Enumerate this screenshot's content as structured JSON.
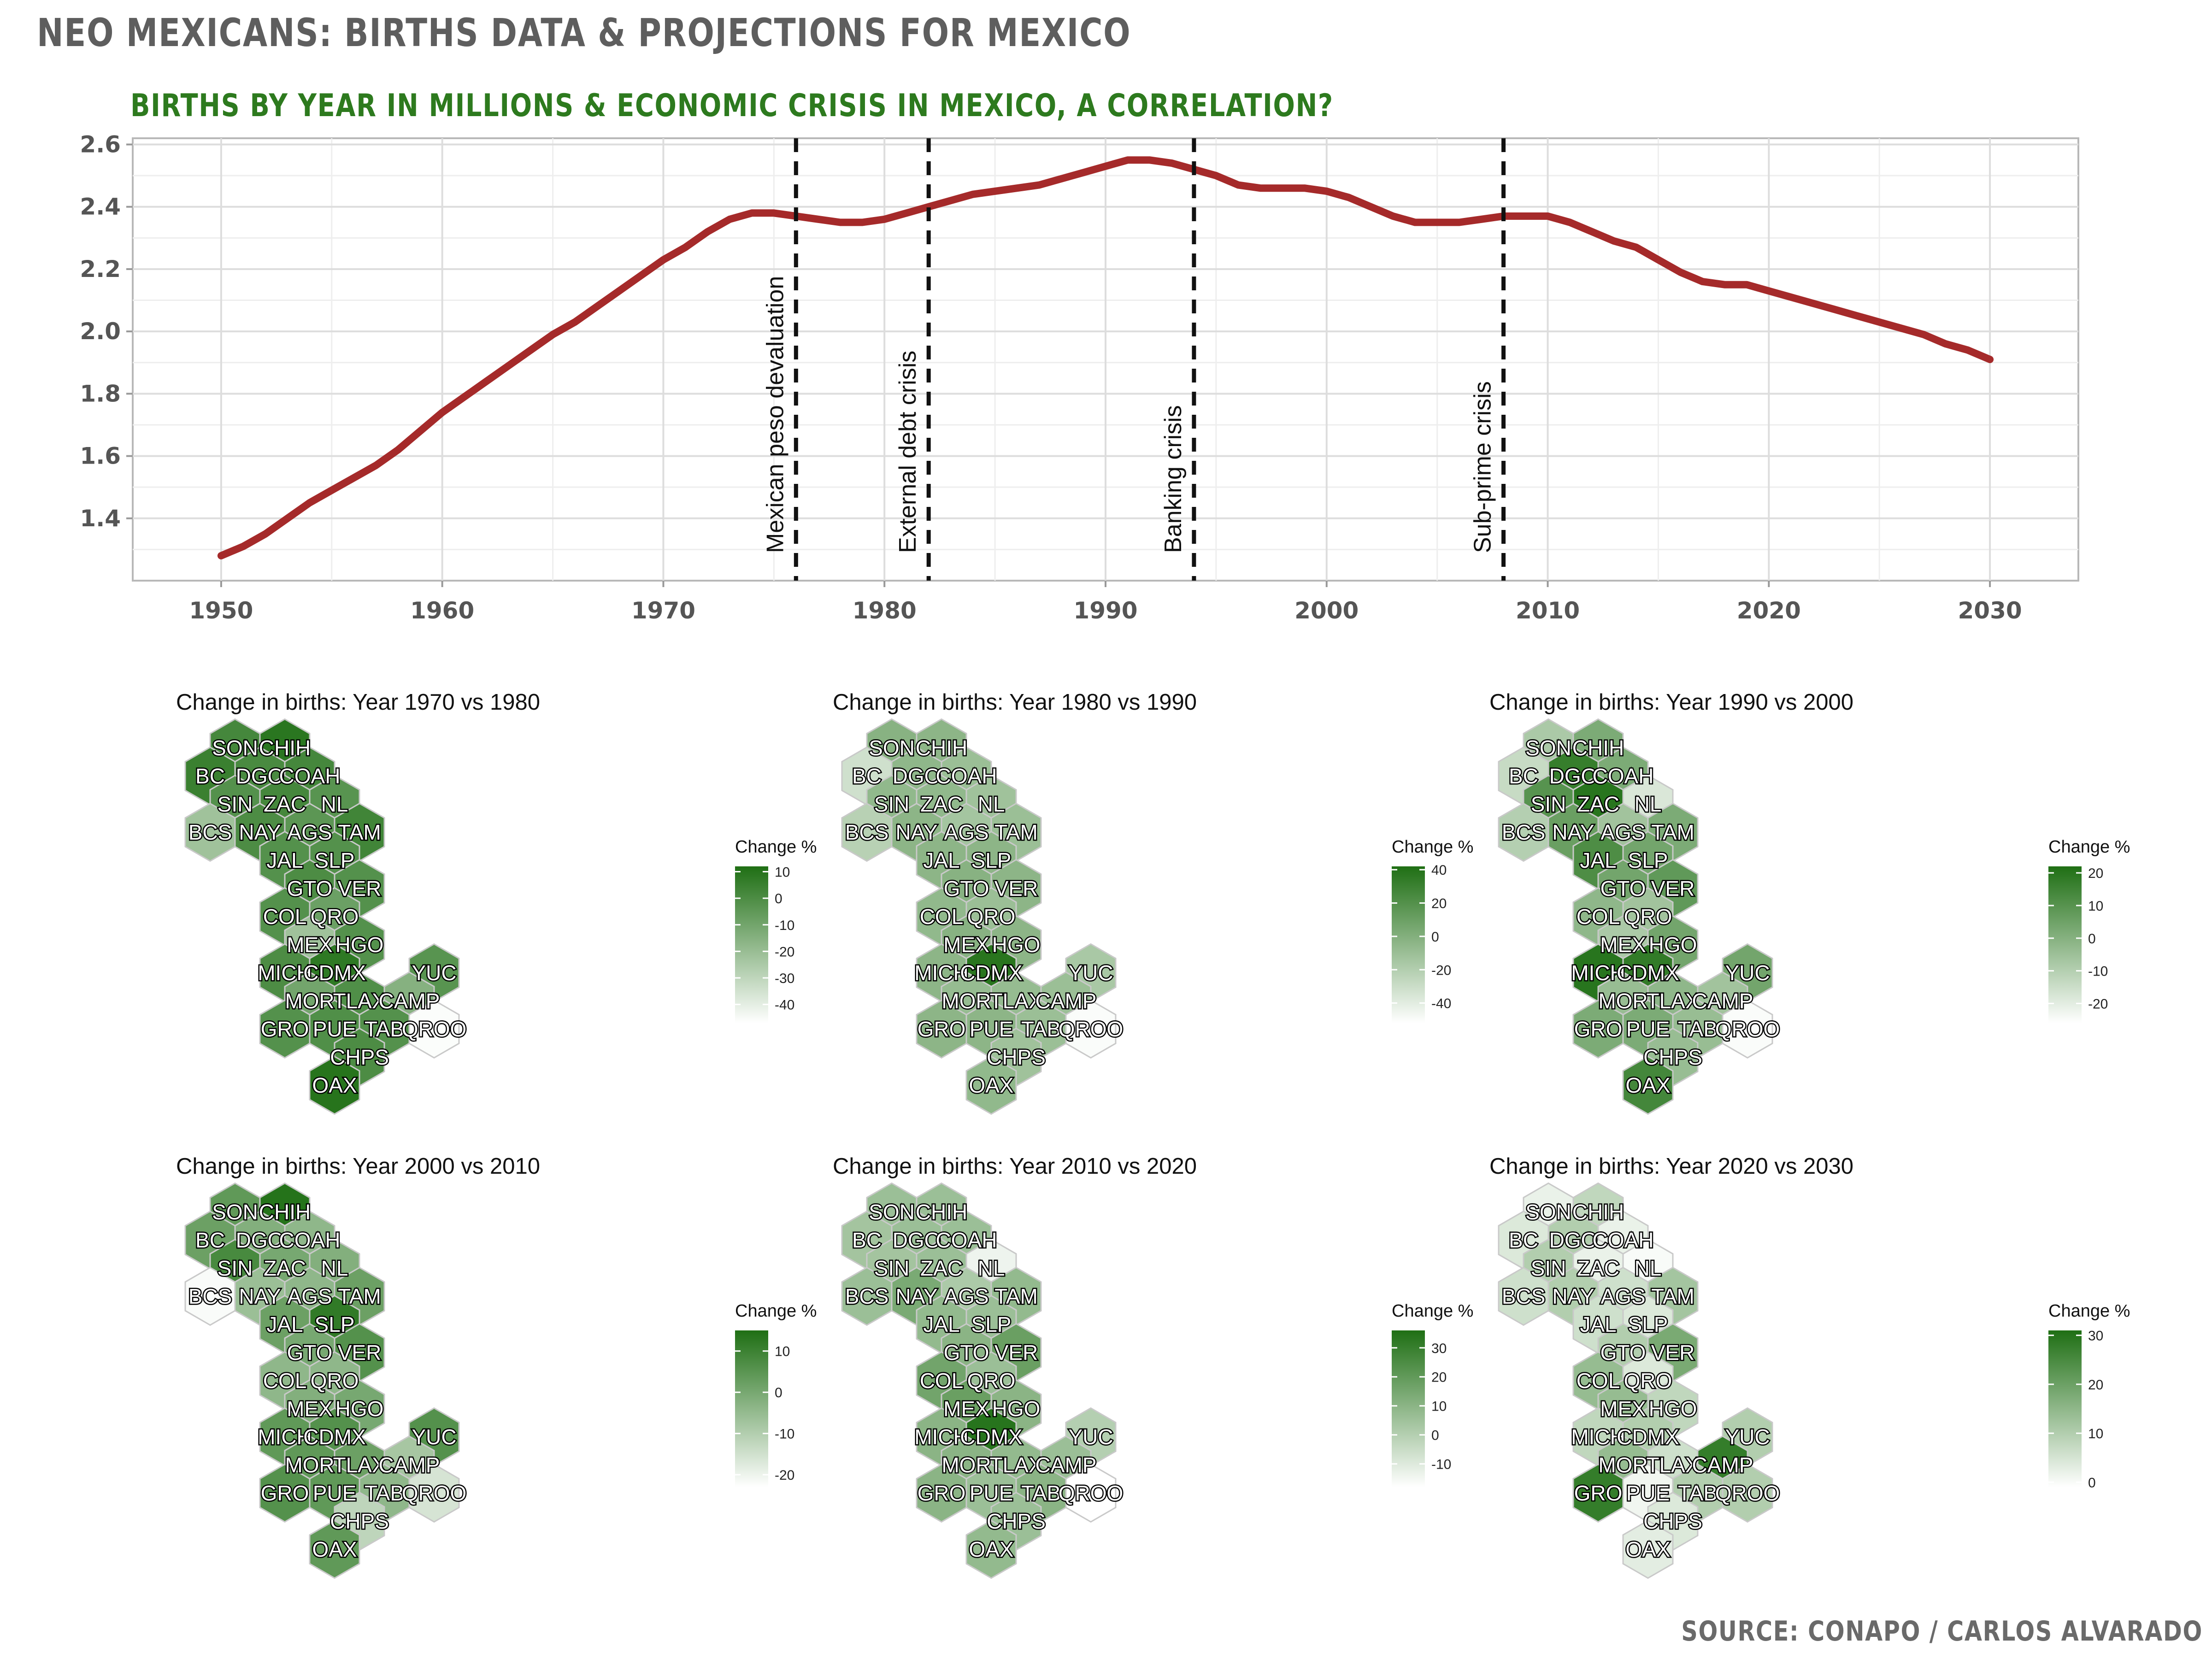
{
  "header": {
    "title": "NEO MEXICANS: BIRTHS DATA & PROJECTIONS FOR MEXICO",
    "source": "SOURCE: CONAPO / CARLOS ALVARADO"
  },
  "colors": {
    "line": "#a52a2a",
    "map_high": "#1f6f14",
    "map_low": "#ffffff",
    "hex_border": "#c9c9c9"
  },
  "chart_data": [
    {
      "type": "line",
      "title": "BIRTHS BY YEAR IN MILLIONS & ECONOMIC CRISIS IN MEXICO, A CORRELATION?",
      "xlabel": "",
      "ylabel": "",
      "xlim": [
        1946,
        2034
      ],
      "ylim": [
        1.2,
        2.62
      ],
      "xticks": [
        1950,
        1960,
        1970,
        1980,
        1990,
        2000,
        2010,
        2020,
        2030
      ],
      "yticks": [
        1.4,
        1.6,
        1.8,
        2.0,
        2.2,
        2.4,
        2.6
      ],
      "ytick_labels": [
        "1.4",
        "1.6",
        "1.8",
        "2.0",
        "2.2",
        "2.4",
        "2.6"
      ],
      "grid": true,
      "series": [
        {
          "x": [
            1950,
            1951,
            1952,
            1953,
            1954,
            1955,
            1956,
            1957,
            1958,
            1959,
            1960,
            1961,
            1962,
            1963,
            1964,
            1965,
            1966,
            1967,
            1968,
            1969,
            1970,
            1971,
            1972,
            1973,
            1974,
            1975,
            1976,
            1977,
            1978,
            1979,
            1980,
            1981,
            1982,
            1983,
            1984,
            1985,
            1986,
            1987,
            1988,
            1989,
            1990,
            1991,
            1992,
            1993,
            1994,
            1995,
            1996,
            1997,
            1998,
            1999,
            2000,
            2001,
            2002,
            2003,
            2004,
            2005,
            2006,
            2007,
            2008,
            2009,
            2010,
            2011,
            2012,
            2013,
            2014,
            2015,
            2016,
            2017,
            2018,
            2019,
            2020,
            2021,
            2022,
            2023,
            2024,
            2025,
            2026,
            2027,
            2028,
            2029,
            2030
          ],
          "values": [
            1.28,
            1.31,
            1.35,
            1.4,
            1.45,
            1.49,
            1.53,
            1.57,
            1.62,
            1.68,
            1.74,
            1.79,
            1.84,
            1.89,
            1.94,
            1.99,
            2.03,
            2.08,
            2.13,
            2.18,
            2.23,
            2.27,
            2.32,
            2.36,
            2.38,
            2.38,
            2.37,
            2.36,
            2.35,
            2.35,
            2.36,
            2.38,
            2.4,
            2.42,
            2.44,
            2.45,
            2.46,
            2.47,
            2.49,
            2.51,
            2.53,
            2.55,
            2.55,
            2.54,
            2.52,
            2.5,
            2.47,
            2.46,
            2.46,
            2.46,
            2.45,
            2.43,
            2.4,
            2.37,
            2.35,
            2.35,
            2.35,
            2.36,
            2.37,
            2.37,
            2.37,
            2.35,
            2.32,
            2.29,
            2.27,
            2.23,
            2.19,
            2.16,
            2.15,
            2.15,
            2.13,
            2.11,
            2.09,
            2.07,
            2.05,
            2.03,
            2.01,
            1.99,
            1.96,
            1.94,
            1.91
          ]
        }
      ],
      "annotations": [
        {
          "x": 1976,
          "label": "Mexican peso devaluation"
        },
        {
          "x": 1982,
          "label": "External debt crisis"
        },
        {
          "x": 1994,
          "label": "Banking crisis"
        },
        {
          "x": 2008,
          "label": "Sub-prime crisis"
        }
      ]
    },
    {
      "type": "heatmap",
      "layout": "hex-tile map",
      "legend_title": "Change %",
      "states": [
        {
          "code": "SON",
          "col": 4,
          "row": 0
        },
        {
          "code": "CHIH",
          "col": 6,
          "row": 0
        },
        {
          "code": "BC",
          "col": 3,
          "row": 1
        },
        {
          "code": "DGO",
          "col": 5,
          "row": 1
        },
        {
          "code": "COAH",
          "col": 7,
          "row": 1
        },
        {
          "code": "SIN",
          "col": 4,
          "row": 2
        },
        {
          "code": "ZAC",
          "col": 6,
          "row": 2
        },
        {
          "code": "NL",
          "col": 8,
          "row": 2
        },
        {
          "code": "BCS",
          "col": 3,
          "row": 3
        },
        {
          "code": "NAY",
          "col": 5,
          "row": 3
        },
        {
          "code": "AGS",
          "col": 7,
          "row": 3
        },
        {
          "code": "TAM",
          "col": 9,
          "row": 3
        },
        {
          "code": "JAL",
          "col": 6,
          "row": 4
        },
        {
          "code": "SLP",
          "col": 8,
          "row": 4
        },
        {
          "code": "GTO",
          "col": 7,
          "row": 5
        },
        {
          "code": "VER",
          "col": 9,
          "row": 5
        },
        {
          "code": "COL",
          "col": 6,
          "row": 6
        },
        {
          "code": "QRO",
          "col": 8,
          "row": 6
        },
        {
          "code": "MEX",
          "col": 7,
          "row": 7
        },
        {
          "code": "HGO",
          "col": 9,
          "row": 7
        },
        {
          "code": "MICH",
          "col": 6,
          "row": 8
        },
        {
          "code": "CDMX",
          "col": 8,
          "row": 8
        },
        {
          "code": "YUC",
          "col": 12,
          "row": 8
        },
        {
          "code": "MOR",
          "col": 7,
          "row": 9
        },
        {
          "code": "TLAX",
          "col": 9,
          "row": 9
        },
        {
          "code": "CAMP",
          "col": 11,
          "row": 9
        },
        {
          "code": "GRO",
          "col": 6,
          "row": 10
        },
        {
          "code": "PUE",
          "col": 8,
          "row": 10
        },
        {
          "code": "TAB",
          "col": 10,
          "row": 10
        },
        {
          "code": "QROO",
          "col": 12,
          "row": 10
        },
        {
          "code": "CHPS",
          "col": 9,
          "row": 11
        },
        {
          "code": "OAX",
          "col": 8,
          "row": 12
        }
      ],
      "panels": [
        {
          "title": "Change in births: Year 1970 vs 1980",
          "scale": [
            -47,
            12
          ],
          "ticks": [
            10,
            0,
            -10,
            -20,
            -30,
            -40
          ],
          "values": {
            "SON": 2,
            "CHIH": 9,
            "BC": 5,
            "DGO": 1,
            "COAH": 2,
            "SIN": -2,
            "ZAC": 2,
            "NL": -3,
            "BCS": -22,
            "NAY": 0,
            "AGS": -4,
            "TAM": 3,
            "JAL": -2,
            "SLP": -2,
            "GTO": 0,
            "VER": -2,
            "COL": -2,
            "QRO": -8,
            "MEX": -22,
            "HGO": -2,
            "MICH": 0,
            "CDMX": 8,
            "YUC": -3,
            "MOR": -10,
            "TLAX": -1,
            "CAMP": -15,
            "GRO": -2,
            "PUE": -1,
            "TAB": -2,
            "QROO": -46,
            "CHPS": 0,
            "OAX": 10
          }
        },
        {
          "title": "Change in births: Year 1980 vs 1990",
          "scale": [
            -52,
            42
          ],
          "ticks": [
            40,
            20,
            0,
            -20,
            -40
          ],
          "values": {
            "SON": -2,
            "CHIH": -4,
            "BC": -32,
            "DGO": -5,
            "COAH": -10,
            "SIN": -6,
            "ZAC": -6,
            "NL": -12,
            "BCS": -22,
            "NAY": -4,
            "AGS": -14,
            "TAM": -10,
            "JAL": -4,
            "SLP": -4,
            "GTO": -2,
            "VER": -4,
            "COL": -6,
            "QRO": -10,
            "MEX": -2,
            "HGO": -4,
            "MICH": -4,
            "CDMX": 38,
            "YUC": -16,
            "MOR": -8,
            "TLAX": -8,
            "CAMP": -10,
            "GRO": -4,
            "PUE": -4,
            "TAB": -10,
            "QROO": -50,
            "CHPS": -12,
            "OAX": -6
          }
        },
        {
          "title": "Change in births: Year 1990 vs 2000",
          "scale": [
            -26,
            22
          ],
          "ticks": [
            20,
            10,
            0,
            -10,
            -20
          ],
          "values": {
            "SON": -8,
            "CHIH": 2,
            "BC": -14,
            "DGO": 17,
            "COAH": 2,
            "SIN": 10,
            "ZAC": 20,
            "NL": -18,
            "BCS": -10,
            "NAY": 6,
            "AGS": -6,
            "TAM": 2,
            "JAL": 12,
            "SLP": 4,
            "GTO": 4,
            "VER": 8,
            "COL": -2,
            "QRO": -6,
            "MEX": -8,
            "HGO": 4,
            "MICH": 20,
            "CDMX": 18,
            "YUC": 4,
            "MOR": -4,
            "TLAX": -2,
            "CAMP": -6,
            "GRO": 2,
            "PUE": 2,
            "TAB": -4,
            "QROO": -25,
            "CHPS": -4,
            "OAX": 14
          }
        },
        {
          "title": "Change in births: Year 2000 vs 2010",
          "scale": [
            -23,
            15
          ],
          "ticks": [
            10,
            0,
            -10,
            -20
          ],
          "values": {
            "SON": 4,
            "CHIH": 14,
            "BC": 2,
            "DGO": -2,
            "COAH": -4,
            "SIN": 8,
            "ZAC": 0,
            "NL": -2,
            "BCS": -22,
            "NAY": -6,
            "AGS": -4,
            "TAM": 2,
            "JAL": 2,
            "SLP": 12,
            "GTO": 0,
            "VER": 6,
            "COL": -4,
            "QRO": -4,
            "MEX": -2,
            "HGO": 0,
            "MICH": 4,
            "CDMX": 6,
            "YUC": 6,
            "MOR": 4,
            "TLAX": 2,
            "CAMP": -8,
            "GRO": 6,
            "PUE": 4,
            "TAB": -4,
            "QROO": -16,
            "CHPS": -12,
            "OAX": 4
          }
        },
        {
          "title": "Change in births: Year 2010 vs 2020",
          "scale": [
            -18,
            36
          ],
          "ticks": [
            30,
            20,
            10,
            0,
            -10
          ],
          "values": {
            "SON": 6,
            "CHIH": 6,
            "BC": 4,
            "DGO": 6,
            "COAH": 6,
            "SIN": 4,
            "ZAC": 6,
            "NL": -14,
            "BCS": 6,
            "NAY": 14,
            "AGS": 2,
            "TAM": 8,
            "JAL": 8,
            "SLP": 6,
            "GTO": 10,
            "VER": 18,
            "COL": 16,
            "QRO": 6,
            "MEX": 18,
            "HGO": 10,
            "MICH": 10,
            "CDMX": 34,
            "YUC": 0,
            "MOR": 10,
            "TLAX": 8,
            "CAMP": 6,
            "GRO": 10,
            "PUE": 6,
            "TAB": 10,
            "QROO": -18,
            "CHPS": 6,
            "OAX": 8
          }
        },
        {
          "title": "Change in births: Year 2020 vs 2030",
          "scale": [
            -1,
            31
          ],
          "ticks": [
            30,
            20,
            10,
            0
          ],
          "values": {
            "SON": 2,
            "CHIH": 8,
            "BC": 4,
            "DGO": 10,
            "COAH": 2,
            "SIN": 10,
            "ZAC": 2,
            "NL": 0,
            "BCS": 6,
            "NAY": 10,
            "AGS": 6,
            "TAM": 12,
            "JAL": 6,
            "SLP": 4,
            "GTO": 10,
            "VER": 18,
            "COL": 14,
            "QRO": 4,
            "MEX": 14,
            "HGO": 8,
            "MICH": 8,
            "CDMX": 10,
            "YUC": 10,
            "MOR": 14,
            "TLAX": 6,
            "CAMP": 28,
            "GRO": 28,
            "PUE": 1,
            "TAB": 10,
            "QROO": 10,
            "CHPS": 4,
            "OAX": 3
          }
        }
      ]
    }
  ]
}
